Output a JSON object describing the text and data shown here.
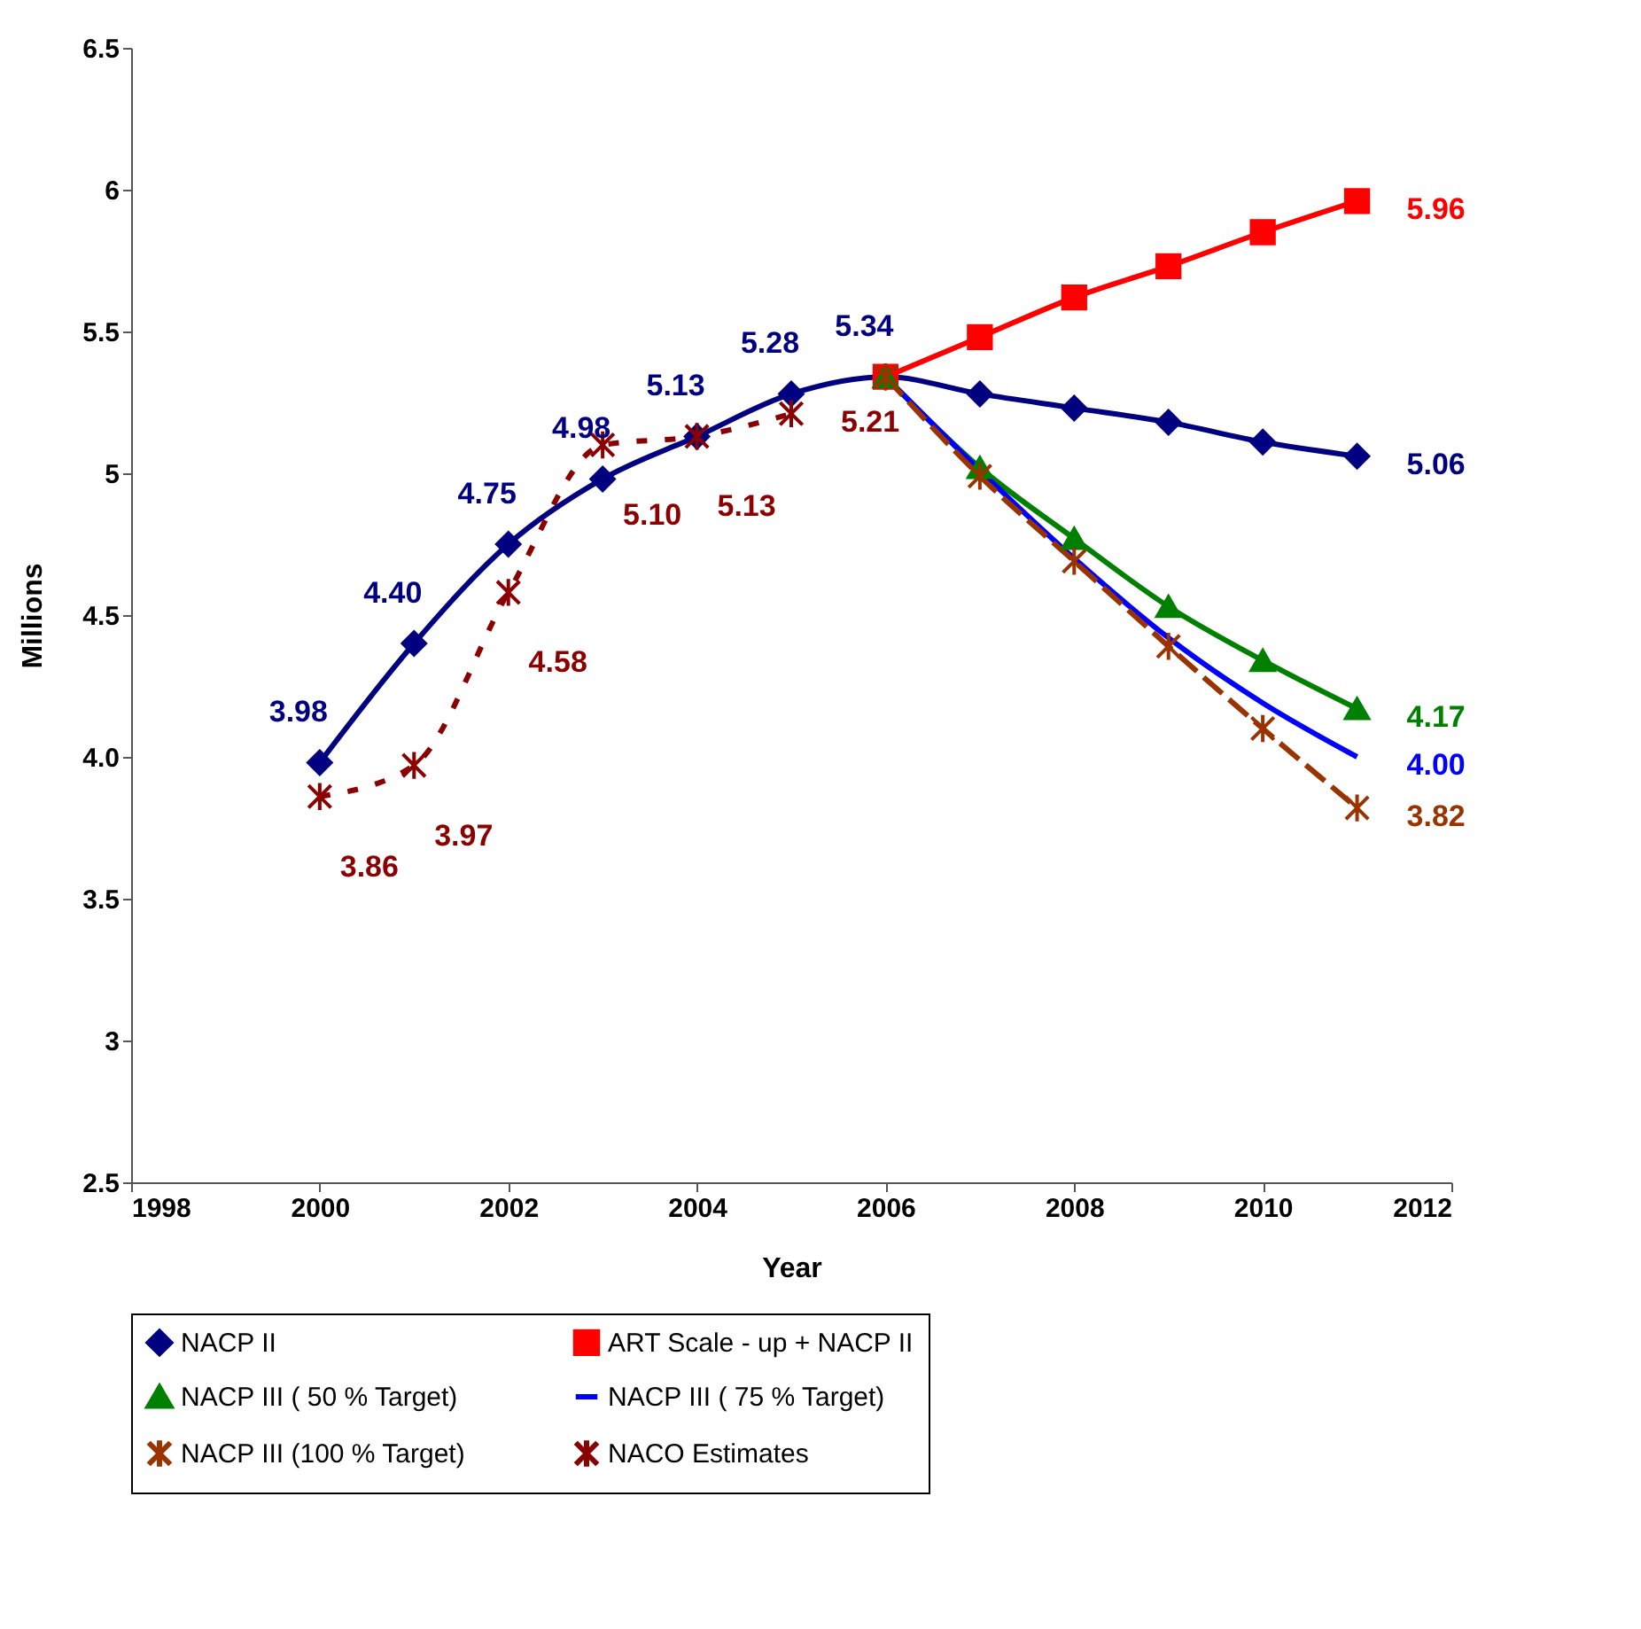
{
  "chart_data": {
    "type": "line",
    "xlabel": "Year",
    "ylabel": "Millions",
    "x": [
      2000,
      2001,
      2002,
      2003,
      2004,
      2005,
      2006,
      2007,
      2008,
      2009,
      2010,
      2011
    ],
    "series": [
      {
        "name": "NACP II",
        "color": "#000080",
        "marker": "diamond",
        "line_style": "solid",
        "values": [
          3.98,
          4.4,
          4.75,
          4.98,
          5.13,
          5.28,
          5.34,
          5.28,
          5.23,
          5.18,
          5.11,
          5.06
        ],
        "value_labels": [
          "3.98",
          "4.40",
          "4.75",
          "4.98",
          "5.13",
          "5.28",
          "5.34",
          null,
          null,
          null,
          null,
          "5.06"
        ]
      },
      {
        "name": "ART Scale - up + NACP II",
        "color": "#ff0000",
        "marker": "square",
        "line_style": "solid",
        "x": [
          2006,
          2007,
          2008,
          2009,
          2010,
          2011
        ],
        "values": [
          5.34,
          5.48,
          5.62,
          5.73,
          5.85,
          5.96
        ],
        "value_labels": [
          null,
          null,
          null,
          null,
          null,
          "5.96"
        ]
      },
      {
        "name": "NACP III  ( 50 % Target)",
        "color": "#008000",
        "marker": "triangle",
        "line_style": "solid",
        "x": [
          2006,
          2007,
          2008,
          2009,
          2010,
          2011
        ],
        "values": [
          5.34,
          5.02,
          4.77,
          4.53,
          4.34,
          4.17
        ],
        "value_labels": [
          null,
          null,
          null,
          null,
          null,
          "4.17"
        ]
      },
      {
        "name": "NACP III ( 75 % Target)",
        "color": "#0000ff",
        "marker": "none",
        "line_style": "solid",
        "x": [
          2006,
          2007,
          2008,
          2009,
          2010,
          2011
        ],
        "values": [
          5.34,
          5.01,
          4.7,
          4.42,
          4.19,
          4.0
        ],
        "value_labels": [
          null,
          null,
          null,
          null,
          null,
          "4.00"
        ]
      },
      {
        "name": "NACP III  (100 % Target)",
        "color": "#993300",
        "marker": "cross",
        "line_style": "dashed",
        "x": [
          2006,
          2007,
          2008,
          2009,
          2010,
          2011
        ],
        "values": [
          5.34,
          4.99,
          4.69,
          4.39,
          4.1,
          3.82
        ],
        "value_labels": [
          null,
          null,
          null,
          null,
          null,
          "3.82"
        ]
      },
      {
        "name": "NACO Estimates",
        "color": "#8b0000",
        "marker": "cross",
        "line_style": "dotted",
        "x": [
          2000,
          2001,
          2002,
          2003,
          2004,
          2005
        ],
        "values": [
          3.86,
          3.97,
          4.58,
          5.1,
          5.13,
          5.21
        ],
        "value_labels": [
          "3.86",
          "3.97",
          "4.58",
          "5.10",
          "5.13",
          "5.21"
        ]
      }
    ],
    "xlim": [
      1998,
      2012
    ],
    "xticks": [
      1998,
      2000,
      2002,
      2004,
      2006,
      2008,
      2010,
      2012
    ],
    "ylim": [
      2.5,
      6.5
    ],
    "yticks": [
      2.5,
      3,
      3.5,
      {
        "value": 4,
        "label": "4.0"
      },
      4.5,
      5,
      5.5,
      6,
      6.5
    ],
    "grid": false,
    "legend": "bottom"
  }
}
